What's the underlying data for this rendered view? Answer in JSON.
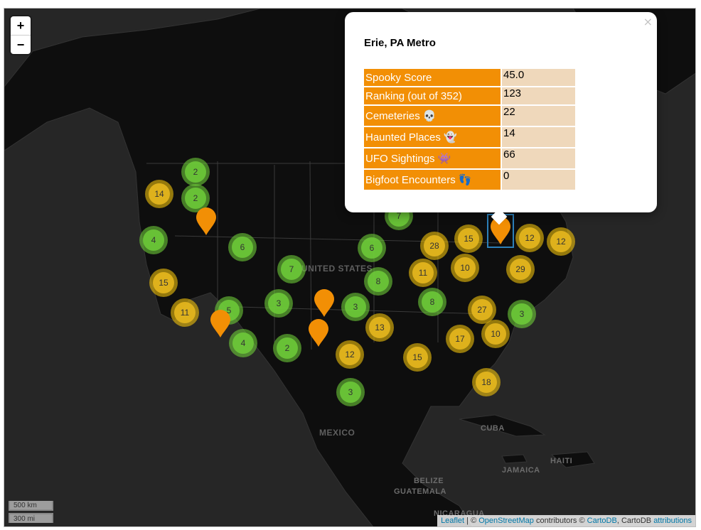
{
  "zoom": {
    "in_label": "+",
    "out_label": "−"
  },
  "map_labels": {
    "united_states": "UNITED STATES",
    "mexico": "MEXICO",
    "cuba": "CUBA",
    "haiti": "HAITI",
    "jamaica": "JAMAICA",
    "belize": "BELIZE",
    "guatemala": "GUATEMALA",
    "nicaragua": "NICARAGUA"
  },
  "colors": {
    "cluster_small": "#6ecc39",
    "cluster_medium": "#f0c20c",
    "marker": "#f28f05",
    "label_bg": "#f28f05",
    "value_bg": "#efd8bb"
  },
  "clusters": [
    {
      "count": "2",
      "size": "small"
    },
    {
      "count": "14",
      "size": "medium"
    },
    {
      "count": "2",
      "size": "small"
    },
    {
      "count": "4",
      "size": "small"
    },
    {
      "count": "6",
      "size": "small"
    },
    {
      "count": "15",
      "size": "medium"
    },
    {
      "count": "7",
      "size": "small"
    },
    {
      "count": "11",
      "size": "medium"
    },
    {
      "count": "5",
      "size": "small"
    },
    {
      "count": "3",
      "size": "small"
    },
    {
      "count": "4",
      "size": "small"
    },
    {
      "count": "2",
      "size": "small"
    },
    {
      "count": "3",
      "size": "small"
    },
    {
      "count": "6",
      "size": "small"
    },
    {
      "count": "8",
      "size": "small"
    },
    {
      "count": "13",
      "size": "medium"
    },
    {
      "count": "12",
      "size": "medium"
    },
    {
      "count": "3",
      "size": "small"
    },
    {
      "count": "7",
      "size": "small"
    },
    {
      "count": "28",
      "size": "medium"
    },
    {
      "count": "11",
      "size": "medium"
    },
    {
      "count": "15",
      "size": "medium"
    },
    {
      "count": "10",
      "size": "medium"
    },
    {
      "count": "8",
      "size": "small"
    },
    {
      "count": "15",
      "size": "medium"
    },
    {
      "count": "27",
      "size": "medium"
    },
    {
      "count": "17",
      "size": "medium"
    },
    {
      "count": "10",
      "size": "medium"
    },
    {
      "count": "18",
      "size": "medium"
    },
    {
      "count": "12",
      "size": "medium"
    },
    {
      "count": "12",
      "size": "medium"
    },
    {
      "count": "29",
      "size": "medium"
    },
    {
      "count": "3",
      "size": "small"
    }
  ],
  "popup": {
    "close": "×",
    "title": "Erie, PA Metro",
    "rows": [
      {
        "label": "Spooky Score",
        "value": "45.0"
      },
      {
        "label": "Ranking (out of 352)",
        "value": "123"
      },
      {
        "label": "Cemeteries 💀",
        "value": "22"
      },
      {
        "label": "Haunted Places 👻",
        "value": "14"
      },
      {
        "label": "UFO Sightings 👾",
        "value": "66"
      },
      {
        "label": "Bigfoot Encounters 👣",
        "value": "0"
      }
    ]
  },
  "scale": {
    "km": "500 km",
    "mi": "300 mi"
  },
  "attribution": {
    "leaflet": "Leaflet",
    "sep": " | © ",
    "osm": "OpenStreetMap",
    "contrib": " contributors © ",
    "cartodb_link": "CartoDB",
    "cartodb_text": ", CartoDB ",
    "attributions": "attributions"
  }
}
